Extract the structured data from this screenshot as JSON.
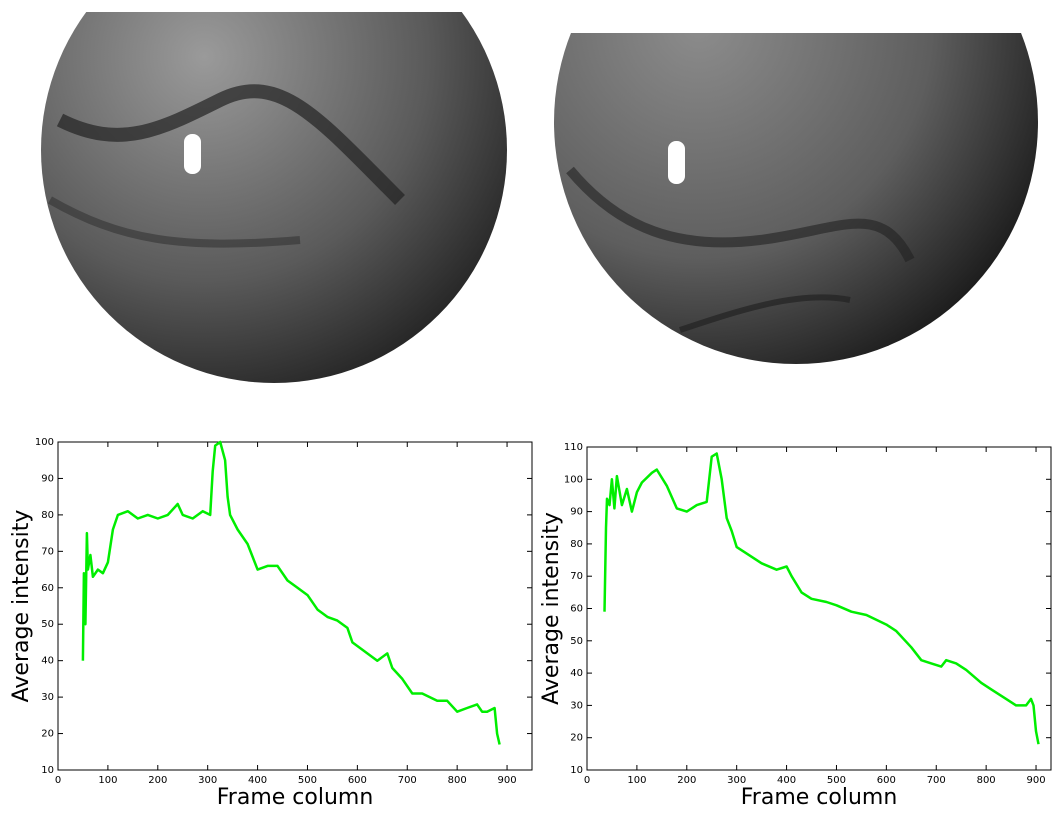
{
  "chart_data": [
    {
      "type": "line",
      "xlabel": "Frame column",
      "ylabel": "Average intensity",
      "color": "#00ee00",
      "x": [
        50,
        52,
        55,
        58,
        60,
        65,
        70,
        80,
        90,
        100,
        110,
        120,
        140,
        160,
        180,
        200,
        220,
        240,
        250,
        270,
        290,
        305,
        310,
        315,
        325,
        335,
        340,
        345,
        360,
        380,
        400,
        420,
        440,
        460,
        480,
        500,
        520,
        540,
        560,
        580,
        590,
        610,
        640,
        660,
        670,
        690,
        710,
        730,
        760,
        780,
        800,
        820,
        840,
        850,
        860,
        875,
        880,
        885
      ],
      "values": [
        40,
        64,
        50,
        75,
        65,
        69,
        63,
        65,
        64,
        67,
        76,
        80,
        81,
        79,
        80,
        79,
        80,
        83,
        80,
        79,
        81,
        80,
        92,
        99,
        100,
        95,
        85,
        80,
        76,
        72,
        65,
        66,
        66,
        62,
        60,
        58,
        54,
        52,
        51,
        49,
        45,
        43,
        40,
        42,
        38,
        35,
        31,
        31,
        29,
        29,
        26,
        27,
        28,
        26,
        26,
        27,
        20,
        17
      ],
      "xlim": [
        0,
        950
      ],
      "ylim": [
        10,
        100
      ],
      "xticks": [
        0,
        100,
        200,
        300,
        400,
        500,
        600,
        700,
        800,
        900
      ],
      "yticks": [
        10,
        20,
        30,
        40,
        50,
        60,
        70,
        80,
        90,
        100
      ]
    },
    {
      "type": "line",
      "xlabel": "Frame column",
      "ylabel": "Average intensity",
      "color": "#00ee00",
      "x": [
        35,
        38,
        40,
        45,
        50,
        55,
        60,
        70,
        80,
        90,
        100,
        110,
        130,
        140,
        160,
        180,
        200,
        220,
        240,
        250,
        260,
        270,
        280,
        290,
        300,
        320,
        350,
        380,
        400,
        410,
        430,
        450,
        480,
        500,
        530,
        560,
        600,
        620,
        650,
        670,
        690,
        710,
        720,
        740,
        760,
        790,
        810,
        840,
        860,
        880,
        890,
        895,
        900,
        905
      ],
      "values": [
        59,
        85,
        94,
        92,
        100,
        91,
        101,
        92,
        97,
        90,
        96,
        99,
        102,
        103,
        98,
        91,
        90,
        92,
        93,
        107,
        108,
        100,
        88,
        84,
        79,
        77,
        74,
        72,
        73,
        70,
        65,
        63,
        62,
        61,
        59,
        58,
        55,
        53,
        48,
        44,
        43,
        42,
        44,
        43,
        41,
        37,
        35,
        32,
        30,
        30,
        32,
        30,
        22,
        18
      ],
      "xlim": [
        0,
        930
      ],
      "ylim": [
        10,
        110
      ],
      "xticks": [
        0,
        100,
        200,
        300,
        400,
        500,
        600,
        700,
        800,
        900
      ],
      "yticks": [
        10,
        20,
        30,
        40,
        50,
        60,
        70,
        80,
        90,
        100,
        110
      ]
    }
  ]
}
